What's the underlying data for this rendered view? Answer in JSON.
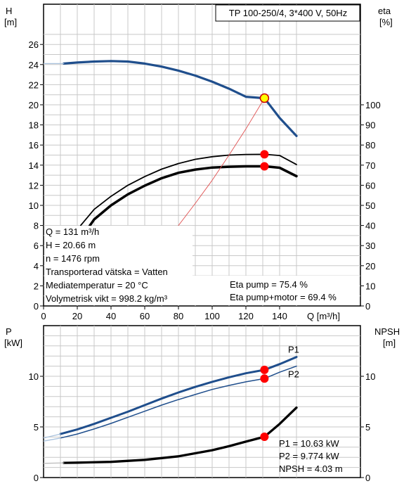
{
  "chart_data": [
    {
      "type": "line",
      "title": "TP 100-250/4, 3*400 V, 50Hz",
      "xlabel": "Q [m³/h]",
      "ylabel": "H\n[m]",
      "y2label": "eta\n[%]",
      "xlim": [
        0,
        155
      ],
      "ylim": [
        0,
        28
      ],
      "y2lim": [
        0,
        140
      ],
      "xticks": [
        0,
        20,
        40,
        60,
        80,
        100,
        120,
        140
      ],
      "yticks": [
        0,
        2,
        4,
        6,
        8,
        10,
        12,
        14,
        16,
        18,
        20,
        22,
        24,
        26
      ],
      "y2ticks": [
        0,
        10,
        20,
        30,
        40,
        50,
        60,
        70,
        80,
        90,
        100
      ],
      "grid": true,
      "series": [
        {
          "name": "",
          "axis": "H",
          "color": "#1f4e8c",
          "width": 3.2,
          "x": [
            12,
            20,
            30,
            40,
            50,
            60,
            70,
            80,
            90,
            100,
            110,
            120,
            131,
            140,
            150
          ],
          "y": [
            24.1,
            24.2,
            24.3,
            24.35,
            24.3,
            24.1,
            23.8,
            23.4,
            22.9,
            22.3,
            21.6,
            20.8,
            20.66,
            18.7,
            16.9
          ]
        },
        {
          "name": "",
          "axis": "H",
          "color": "#a9c2dd",
          "width": 1.3,
          "x": [
            0,
            12
          ],
          "y": [
            24.1,
            24.1
          ]
        },
        {
          "name": "",
          "axis": "eta",
          "color": "#000000",
          "width": 1.8,
          "x": [
            22,
            30,
            40,
            50,
            60,
            70,
            80,
            90,
            100,
            110,
            120,
            131,
            140,
            150
          ],
          "y": [
            40,
            48,
            54.5,
            60,
            64.3,
            68,
            70.8,
            72.9,
            74.2,
            75,
            75.3,
            75.4,
            74.8,
            70.3
          ]
        },
        {
          "name": "",
          "axis": "eta",
          "color": "#000000",
          "width": 3.5,
          "x": [
            25,
            30,
            40,
            50,
            60,
            70,
            80,
            90,
            100,
            110,
            120,
            131,
            140,
            150
          ],
          "y": [
            37,
            43,
            50,
            55.5,
            59.8,
            63.5,
            66.2,
            67.8,
            68.8,
            69.2,
            69.4,
            69.4,
            68.7,
            64.5
          ]
        },
        {
          "name": "",
          "axis": "H",
          "color": "#e05050",
          "width": 0.9,
          "x": [
            68,
            80,
            90,
            100,
            110,
            120,
            131
          ],
          "y": [
            5.2,
            8,
            10.2,
            12.5,
            15,
            17.6,
            20.66
          ]
        }
      ],
      "points": [
        {
          "axis": "H",
          "x": 131,
          "y": 20.66,
          "color": "#ffff00",
          "edge": "#cc0000"
        },
        {
          "axis": "eta",
          "x": 131,
          "y": 75.4,
          "color": "#ff0000"
        },
        {
          "axis": "eta",
          "x": 131,
          "y": 69.4,
          "color": "#ff0000"
        }
      ],
      "info_left": [
        "Q = 131 m³/h",
        "H = 20.66 m",
        "n = 1476 rpm",
        "Transporterad vätska = Vatten",
        "Mediatemperatur = 20 °C",
        "Volymetrisk vikt = 998.2 kg/m³"
      ],
      "info_right": [
        "Eta pump = 75.4 %",
        "Eta pump+motor = 69.4 %"
      ]
    },
    {
      "type": "line",
      "ylabel": "P\n[kW]",
      "y2label": "NPSH\n[m]",
      "xlim": [
        0,
        155
      ],
      "ylim": [
        0,
        14
      ],
      "yticks": [
        0,
        5,
        10
      ],
      "y2ticks": [
        0,
        5,
        10
      ],
      "grid": true,
      "series": [
        {
          "name": "P1",
          "axis": "P",
          "color": "#1f4e8c",
          "width": 3,
          "x": [
            10,
            20,
            30,
            40,
            50,
            60,
            70,
            80,
            90,
            100,
            110,
            120,
            131,
            140,
            150
          ],
          "y": [
            4.3,
            4.75,
            5.3,
            5.9,
            6.5,
            7.15,
            7.8,
            8.4,
            8.95,
            9.45,
            9.9,
            10.3,
            10.63,
            11.2,
            11.9
          ]
        },
        {
          "name": "P2",
          "axis": "P",
          "color": "#1f4e8c",
          "width": 1.5,
          "x": [
            10,
            20,
            30,
            40,
            50,
            60,
            70,
            80,
            90,
            100,
            110,
            120,
            131,
            140,
            150
          ],
          "y": [
            3.9,
            4.3,
            4.8,
            5.35,
            5.95,
            6.55,
            7.15,
            7.7,
            8.2,
            8.7,
            9.1,
            9.45,
            9.774,
            10.4,
            11.0
          ]
        },
        {
          "name": "",
          "axis": "P",
          "color": "#a9c2dd",
          "width": 1.3,
          "x": [
            0,
            10
          ],
          "y": [
            3.9,
            4.3
          ]
        },
        {
          "name": "",
          "axis": "P",
          "color": "#a9c2dd",
          "width": 1.3,
          "x": [
            0,
            10
          ],
          "y": [
            3.6,
            3.9
          ]
        },
        {
          "name": "",
          "axis": "NPSH",
          "color": "#000000",
          "width": 3.3,
          "x": [
            12,
            20,
            40,
            60,
            80,
            100,
            110,
            120,
            131,
            140,
            150
          ],
          "y": [
            1.45,
            1.47,
            1.55,
            1.75,
            2.1,
            2.7,
            3.1,
            3.55,
            4.03,
            5.3,
            6.9
          ]
        },
        {
          "name": "",
          "axis": "NPSH",
          "color": "#bdbdbd",
          "width": 1.3,
          "x": [
            0,
            12
          ],
          "y": [
            1.4,
            1.45
          ]
        }
      ],
      "points": [
        {
          "axis": "P",
          "x": 131,
          "y": 10.63,
          "color": "#ff0000"
        },
        {
          "axis": "P",
          "x": 131,
          "y": 9.774,
          "color": "#ff0000"
        },
        {
          "axis": "NPSH",
          "x": 131,
          "y": 4.03,
          "color": "#ff0000"
        }
      ],
      "info": [
        "P1 = 10.63 kW",
        "P2 = 9.774 kW",
        "NPSH = 4.03 m"
      ]
    }
  ]
}
